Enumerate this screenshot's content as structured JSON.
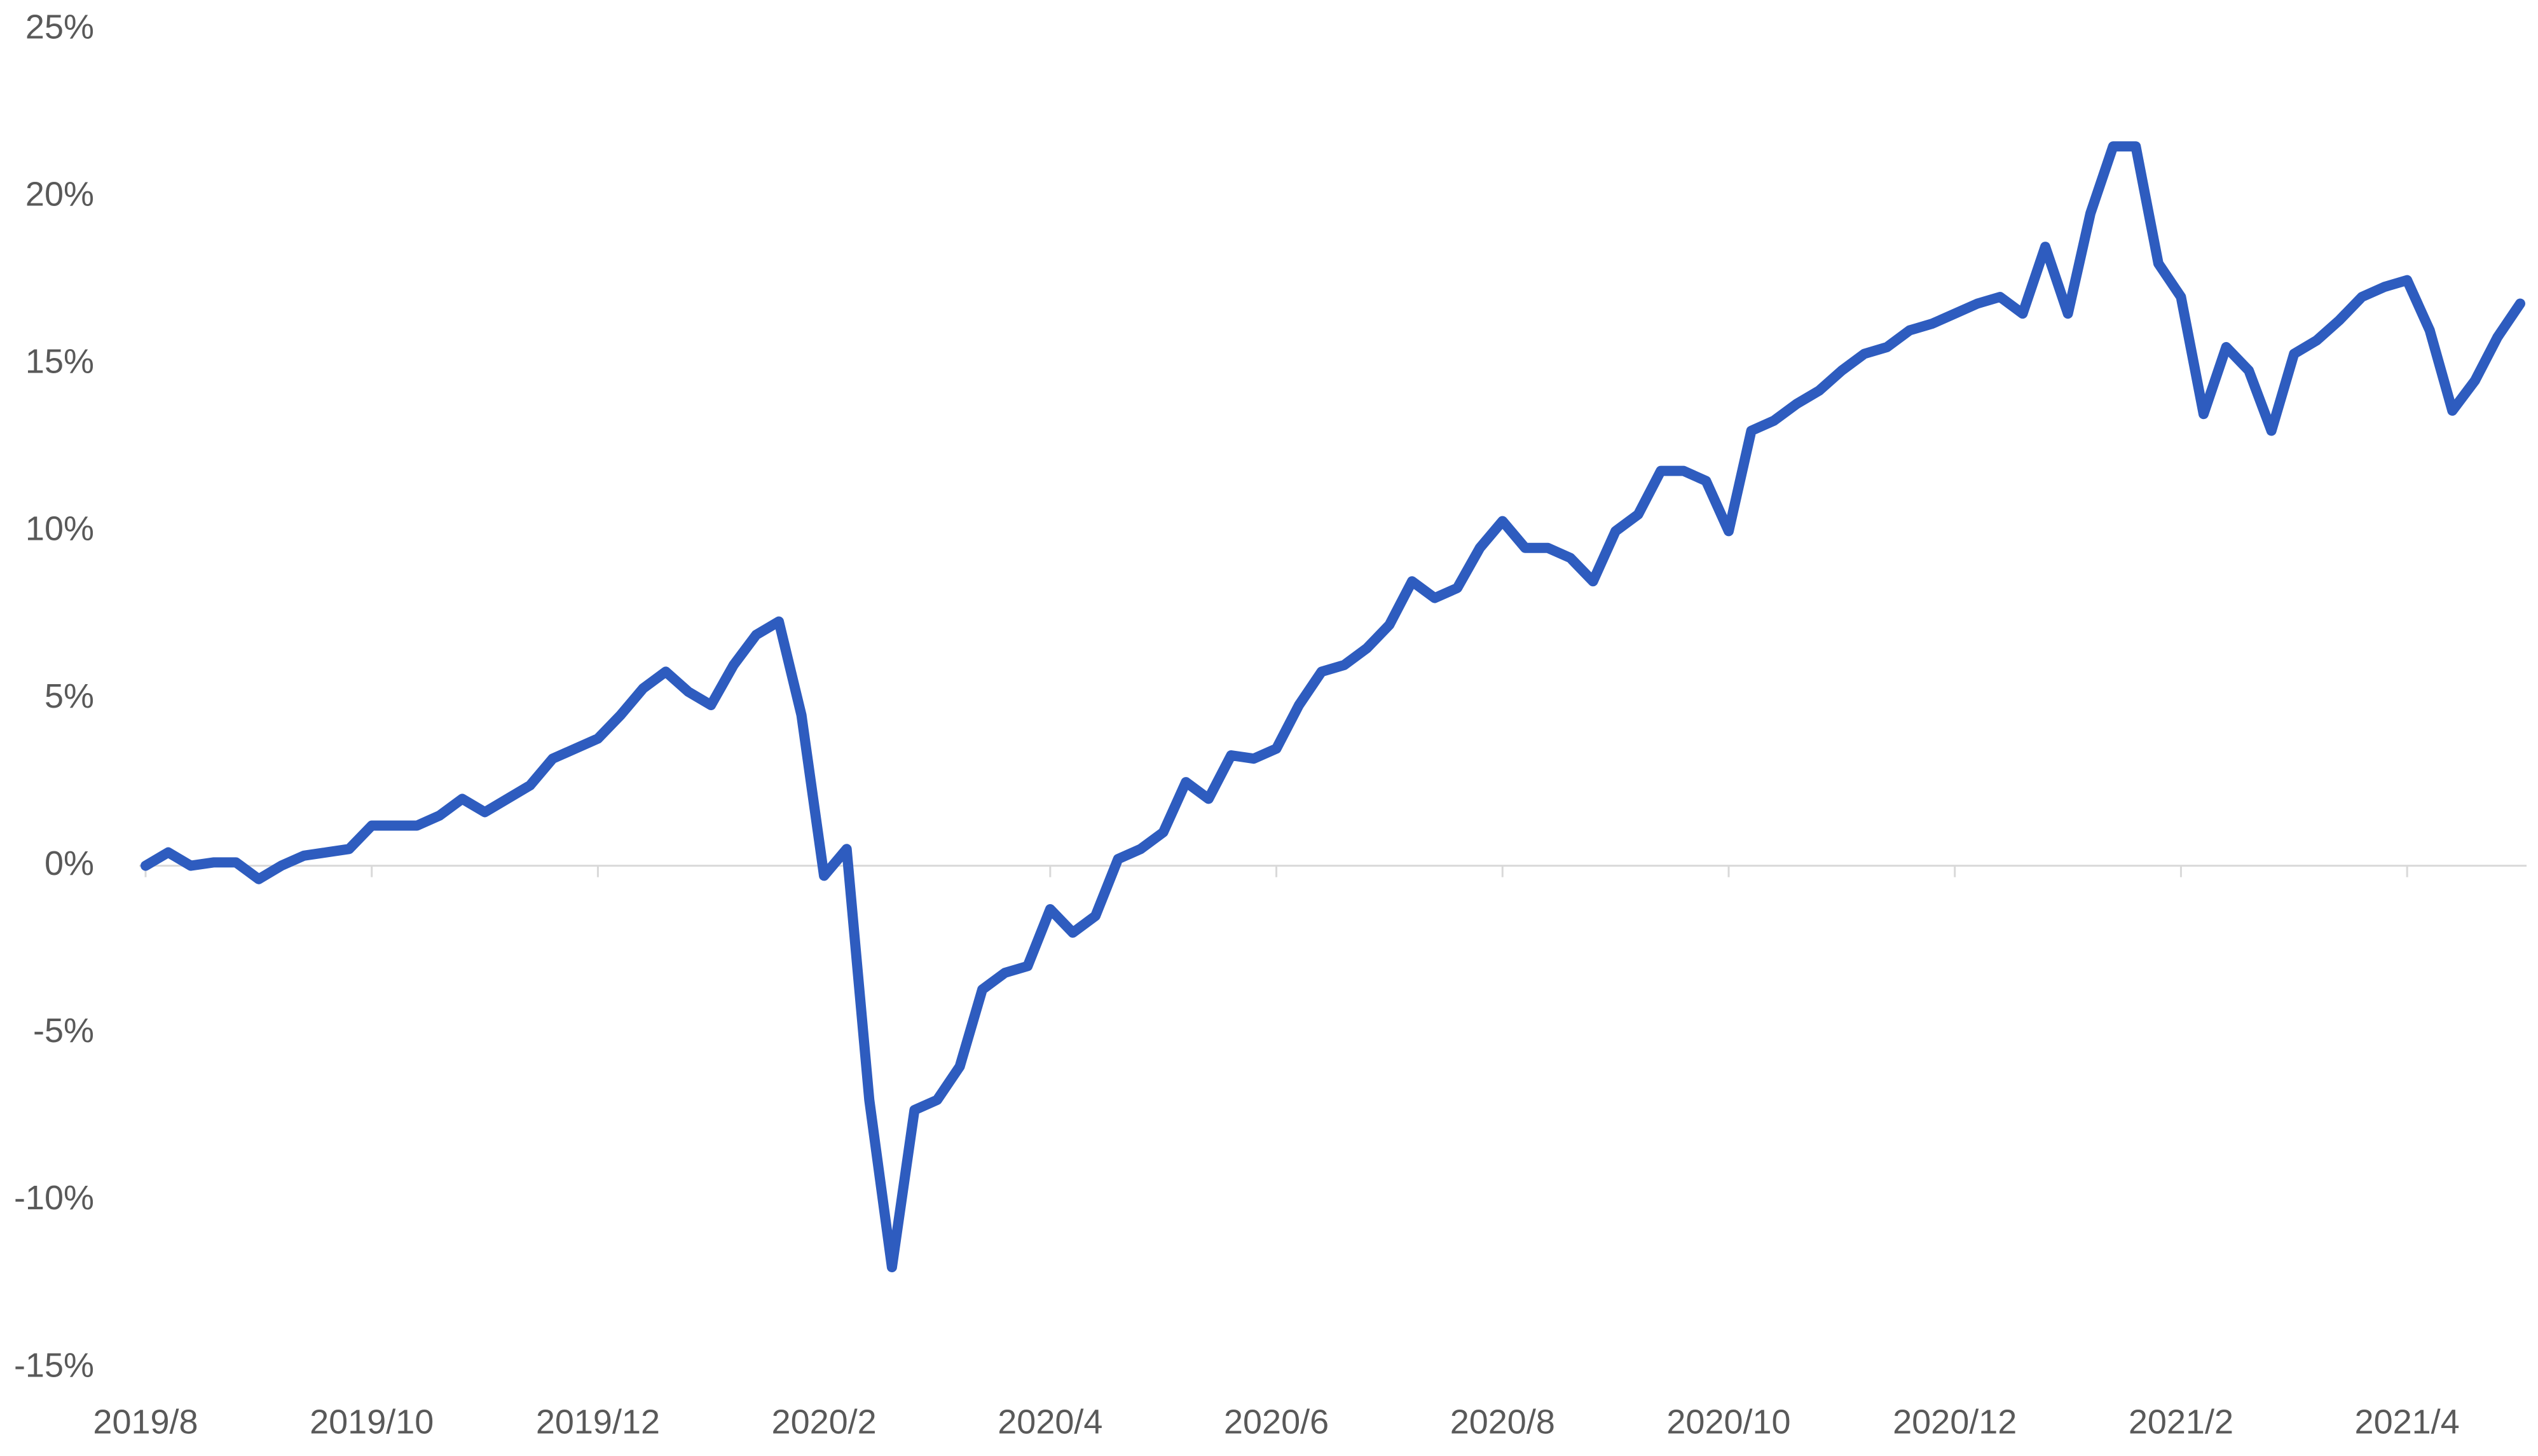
{
  "chart_data": {
    "type": "line",
    "categories": [
      "2019/8",
      null,
      null,
      null,
      null,
      null,
      null,
      null,
      null,
      null,
      "2019/10",
      null,
      null,
      null,
      null,
      null,
      null,
      null,
      null,
      null,
      "2019/12",
      null,
      null,
      null,
      null,
      null,
      null,
      null,
      null,
      null,
      "2020/2",
      null,
      null,
      null,
      null,
      null,
      null,
      null,
      null,
      null,
      "2020/4",
      null,
      null,
      null,
      null,
      null,
      null,
      null,
      null,
      null,
      "2020/6",
      null,
      null,
      null,
      null,
      null,
      null,
      null,
      null,
      null,
      "2020/8",
      null,
      null,
      null,
      null,
      null,
      null,
      null,
      null,
      null,
      "2020/10",
      null,
      null,
      null,
      null,
      null,
      null,
      null,
      null,
      null,
      "2020/12",
      null,
      null,
      null,
      null,
      null,
      null,
      null,
      null,
      null,
      "2021/2",
      null,
      null,
      null,
      null,
      null,
      null,
      null,
      null,
      null,
      "2021/4",
      null,
      null,
      null,
      null,
      null
    ],
    "values": [
      0,
      0.4,
      0,
      0.1,
      0.1,
      -0.4,
      0,
      0.3,
      0.4,
      0.5,
      1.2,
      1.2,
      1.2,
      1.5,
      2.0,
      1.6,
      2.0,
      2.4,
      3.2,
      3.5,
      3.8,
      4.5,
      5.3,
      5.8,
      5.2,
      4.8,
      6.0,
      6.9,
      7.3,
      4.5,
      -0.3,
      0.5,
      -7.0,
      -12.0,
      -7.3,
      -7.0,
      -6.0,
      -3.7,
      -3.2,
      -3.0,
      -1.3,
      -2.0,
      -1.5,
      0.2,
      0.5,
      1.0,
      2.5,
      2.0,
      3.3,
      3.2,
      3.5,
      4.8,
      5.8,
      6.0,
      6.5,
      7.2,
      8.5,
      8.0,
      8.3,
      9.5,
      10.3,
      9.5,
      9.5,
      9.2,
      8.5,
      10.0,
      10.5,
      11.8,
      11.8,
      11.5,
      10.0,
      13.0,
      13.3,
      13.8,
      14.2,
      14.8,
      15.3,
      15.5,
      16.0,
      16.2,
      16.5,
      16.8,
      17.0,
      16.5,
      18.5,
      16.5,
      19.5,
      21.5,
      21.5,
      18.0,
      17.0,
      13.5,
      15.5,
      14.8,
      13.0,
      15.3,
      15.7,
      16.3,
      17.0,
      17.3,
      17.5,
      16.0,
      13.6,
      14.5,
      15.8,
      16.8
    ],
    "color": "#2e5cbf",
    "ylim": [
      -15,
      25
    ],
    "yticks": [
      {
        "value": -15,
        "label": "-15%"
      },
      {
        "value": -10,
        "label": "-10%"
      },
      {
        "value": -5,
        "label": "-5%"
      },
      {
        "value": 0,
        "label": "0%"
      },
      {
        "value": 5,
        "label": "5%"
      },
      {
        "value": 10,
        "label": "10%"
      },
      {
        "value": 15,
        "label": "15%"
      },
      {
        "value": 20,
        "label": "20%"
      },
      {
        "value": 25,
        "label": "25%"
      }
    ],
    "grid": false
  }
}
